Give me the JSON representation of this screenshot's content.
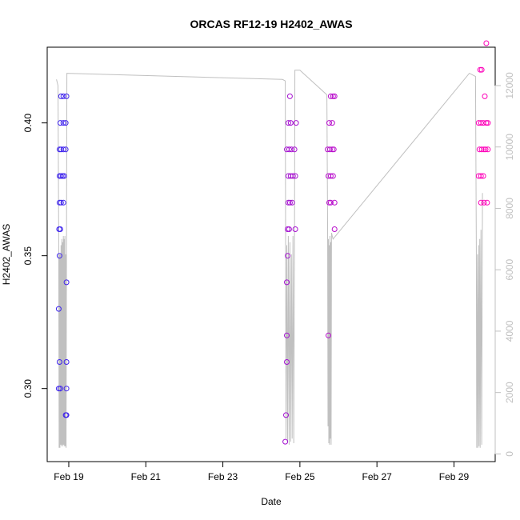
{
  "chart_data": {
    "type": "scatter",
    "title": "ORCAS RF12-19 H2402_AWAS",
    "xlabel": "Date",
    "ylabel": "H2402_AWAS",
    "x_ticks": [
      "Feb 19",
      "Feb 21",
      "Feb 23",
      "Feb 25",
      "Feb 27",
      "Feb 29"
    ],
    "y_ticks": [
      "0.30",
      "0.35",
      "0.40"
    ],
    "y2_ticks": [
      "0",
      "2000",
      "4000",
      "6000",
      "8000",
      "10000",
      "12000"
    ],
    "xlim_days": [
      18.44,
      30.07
    ],
    "ylim": [
      0.2725,
      0.4285
    ],
    "y2lim": [
      -250,
      13250
    ],
    "grid": false,
    "legend": "none",
    "colors": {
      "start": "#3a24ee",
      "end": "#ff00b8",
      "altitude_line": "#c0c0c0"
    },
    "points": [
      [
        18.74,
        0.3
      ],
      [
        18.78,
        0.3
      ],
      [
        18.74,
        0.33
      ],
      [
        18.76,
        0.31
      ],
      [
        18.76,
        0.35
      ],
      [
        18.75,
        0.36
      ],
      [
        18.78,
        0.36
      ],
      [
        18.76,
        0.37
      ],
      [
        18.8,
        0.37
      ],
      [
        18.86,
        0.37
      ],
      [
        18.76,
        0.38
      ],
      [
        18.8,
        0.38
      ],
      [
        18.84,
        0.38
      ],
      [
        18.88,
        0.38
      ],
      [
        18.76,
        0.39
      ],
      [
        18.8,
        0.39
      ],
      [
        18.86,
        0.39
      ],
      [
        18.92,
        0.39
      ],
      [
        18.78,
        0.4
      ],
      [
        18.86,
        0.4
      ],
      [
        18.92,
        0.4
      ],
      [
        18.8,
        0.41
      ],
      [
        18.86,
        0.41
      ],
      [
        18.94,
        0.41
      ],
      [
        18.92,
        0.29
      ],
      [
        18.94,
        0.29
      ],
      [
        18.94,
        0.3
      ],
      [
        18.94,
        0.31
      ],
      [
        18.94,
        0.34
      ],
      [
        24.62,
        0.28
      ],
      [
        24.64,
        0.29
      ],
      [
        24.66,
        0.31
      ],
      [
        24.66,
        0.32
      ],
      [
        24.66,
        0.34
      ],
      [
        24.68,
        0.35
      ],
      [
        24.68,
        0.36
      ],
      [
        24.72,
        0.36
      ],
      [
        24.7,
        0.37
      ],
      [
        24.74,
        0.37
      ],
      [
        24.8,
        0.37
      ],
      [
        24.7,
        0.38
      ],
      [
        24.76,
        0.38
      ],
      [
        24.82,
        0.38
      ],
      [
        24.88,
        0.38
      ],
      [
        24.66,
        0.39
      ],
      [
        24.72,
        0.39
      ],
      [
        24.78,
        0.39
      ],
      [
        24.86,
        0.39
      ],
      [
        24.7,
        0.4
      ],
      [
        24.76,
        0.4
      ],
      [
        24.9,
        0.4
      ],
      [
        24.74,
        0.41
      ],
      [
        24.88,
        0.36
      ],
      [
        25.74,
        0.32
      ],
      [
        25.76,
        0.37
      ],
      [
        25.8,
        0.37
      ],
      [
        25.9,
        0.37
      ],
      [
        25.74,
        0.38
      ],
      [
        25.8,
        0.38
      ],
      [
        25.86,
        0.38
      ],
      [
        25.72,
        0.39
      ],
      [
        25.78,
        0.39
      ],
      [
        25.84,
        0.39
      ],
      [
        25.88,
        0.39
      ],
      [
        25.76,
        0.4
      ],
      [
        25.84,
        0.4
      ],
      [
        25.8,
        0.41
      ],
      [
        25.86,
        0.41
      ],
      [
        25.9,
        0.41
      ],
      [
        25.9,
        0.36
      ],
      [
        29.64,
        0.38
      ],
      [
        29.7,
        0.38
      ],
      [
        29.76,
        0.38
      ],
      [
        29.66,
        0.39
      ],
      [
        29.72,
        0.39
      ],
      [
        29.78,
        0.39
      ],
      [
        29.82,
        0.39
      ],
      [
        29.88,
        0.39
      ],
      [
        29.64,
        0.4
      ],
      [
        29.7,
        0.4
      ],
      [
        29.76,
        0.4
      ],
      [
        29.84,
        0.4
      ],
      [
        29.88,
        0.4
      ],
      [
        29.7,
        0.37
      ],
      [
        29.78,
        0.37
      ],
      [
        29.86,
        0.37
      ],
      [
        29.68,
        0.42
      ],
      [
        29.72,
        0.42
      ],
      [
        29.8,
        0.41
      ],
      [
        29.84,
        0.43
      ]
    ],
    "altitude_series": [
      [
        18.68,
        12200
      ],
      [
        18.72,
        12000
      ],
      [
        18.74,
        7000
      ],
      [
        18.75,
        200
      ],
      [
        18.76,
        6500
      ],
      [
        18.77,
        200
      ],
      [
        18.78,
        6500
      ],
      [
        18.79,
        300
      ],
      [
        18.8,
        6800
      ],
      [
        18.81,
        250
      ],
      [
        18.82,
        7000
      ],
      [
        18.83,
        300
      ],
      [
        18.84,
        6900
      ],
      [
        18.85,
        250
      ],
      [
        18.86,
        7100
      ],
      [
        18.87,
        300
      ],
      [
        18.88,
        7000
      ],
      [
        18.89,
        250
      ],
      [
        18.9,
        7100
      ],
      [
        18.91,
        250
      ],
      [
        18.92,
        6500
      ],
      [
        18.93,
        200
      ],
      [
        18.95,
        12400
      ],
      [
        24.55,
        12200
      ],
      [
        24.62,
        12150
      ],
      [
        24.64,
        500
      ],
      [
        24.66,
        6800
      ],
      [
        24.68,
        400
      ],
      [
        24.7,
        7100
      ],
      [
        24.72,
        300
      ],
      [
        24.74,
        6900
      ],
      [
        24.76,
        400
      ],
      [
        24.78,
        6500
      ],
      [
        24.8,
        500
      ],
      [
        24.82,
        7100
      ],
      [
        24.84,
        350
      ],
      [
        24.86,
        6800
      ],
      [
        24.87,
        12500
      ],
      [
        25.0,
        12500
      ],
      [
        25.7,
        11700
      ],
      [
        25.72,
        7500
      ],
      [
        25.73,
        900
      ],
      [
        25.74,
        7000
      ],
      [
        25.75,
        350
      ],
      [
        25.76,
        6800
      ],
      [
        25.77,
        300
      ],
      [
        25.78,
        7100
      ],
      [
        25.79,
        500
      ],
      [
        25.8,
        6900
      ],
      [
        25.81,
        300
      ],
      [
        25.82,
        7200
      ],
      [
        25.84,
        7100
      ],
      [
        25.86,
        7000
      ],
      [
        29.4,
        12400
      ],
      [
        29.56,
        12300
      ],
      [
        29.58,
        6700
      ],
      [
        29.59,
        200
      ],
      [
        29.61,
        6500
      ],
      [
        29.62,
        200
      ],
      [
        29.64,
        6800
      ],
      [
        29.65,
        250
      ],
      [
        29.67,
        7000
      ],
      [
        29.68,
        200
      ],
      [
        29.7,
        7300
      ],
      [
        29.72,
        300
      ],
      [
        29.74,
        8500
      ]
    ]
  }
}
